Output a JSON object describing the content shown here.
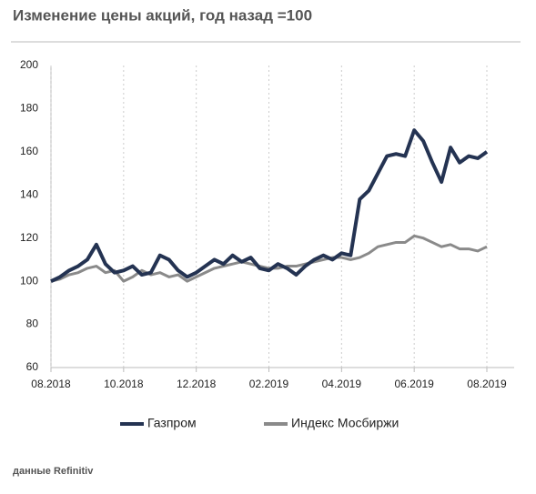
{
  "chart_data": {
    "type": "line",
    "title": "Изменение цены акций, год назад =100",
    "source": "данные Refinitiv",
    "categories": [
      "08.2018",
      null,
      null,
      null,
      null,
      null,
      null,
      null,
      "10.2018",
      null,
      null,
      null,
      null,
      null,
      null,
      null,
      "12.2018",
      null,
      null,
      null,
      null,
      null,
      null,
      null,
      "02.2019",
      null,
      null,
      null,
      null,
      null,
      null,
      null,
      "04.2019",
      null,
      null,
      null,
      null,
      null,
      null,
      null,
      "06.2019",
      null,
      null,
      null,
      null,
      null,
      null,
      null,
      "08.2019"
    ],
    "series": [
      {
        "name": "Газпром",
        "color": "#243352",
        "values": [
          100,
          102,
          105,
          107,
          110,
          117,
          108,
          104,
          105,
          107,
          103,
          104,
          112,
          110,
          105,
          102,
          104,
          107,
          110,
          108,
          112,
          109,
          111,
          106,
          105,
          108,
          106,
          103,
          107,
          110,
          112,
          110,
          113,
          112,
          138,
          142,
          150,
          158,
          159,
          158,
          170,
          165,
          155,
          146,
          162,
          155,
          158,
          157,
          160
        ]
      },
      {
        "name": "Индекс Мосбиржи",
        "color": "#8a8a8a",
        "values": [
          100,
          101,
          103,
          104,
          106,
          107,
          104,
          105,
          100,
          102,
          105,
          103,
          104,
          102,
          103,
          100,
          102,
          104,
          106,
          107,
          108,
          109,
          108,
          107,
          106,
          106,
          107,
          107,
          108,
          109,
          110,
          111,
          111,
          110,
          111,
          113,
          116,
          117,
          118,
          118,
          121,
          120,
          118,
          116,
          117,
          115,
          115,
          114,
          116
        ]
      }
    ],
    "ylim": [
      60,
      200
    ],
    "yticks": [
      60,
      80,
      100,
      120,
      140,
      160,
      180,
      200
    ],
    "grid": true,
    "legend": "bottom"
  }
}
